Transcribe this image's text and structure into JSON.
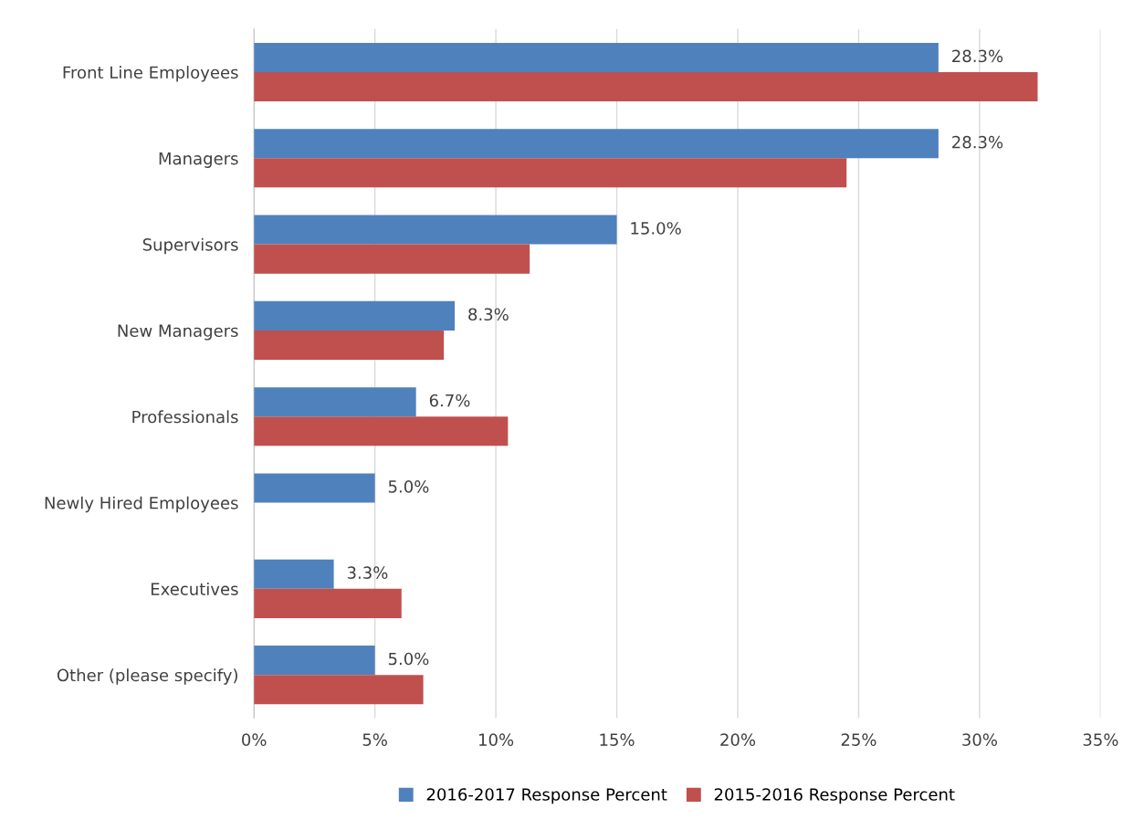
{
  "chart_data": {
    "type": "bar",
    "orientation": "horizontal",
    "categories": [
      "Front Line Employees",
      "Managers",
      "Supervisors",
      "New Managers",
      "Professionals",
      "Newly Hired Employees",
      "Executives",
      "Other (please specify)"
    ],
    "series": [
      {
        "name": "2016-2017 Response Percent",
        "color": "#4f81bd",
        "values": [
          28.3,
          28.3,
          15.0,
          8.3,
          6.7,
          5.0,
          3.3,
          5.0
        ],
        "value_labels": [
          "28.3%",
          "28.3%",
          "15.0%",
          "8.3%",
          "6.7%",
          "5.0%",
          "3.3%",
          "5.0%"
        ]
      },
      {
        "name": "2015-2016 Response Percent",
        "color": "#c0504d",
        "values": [
          32.4,
          24.5,
          11.4,
          7.85,
          10.5,
          null,
          6.1,
          7.0
        ]
      }
    ],
    "xlim": [
      0,
      35
    ],
    "xticks": [
      {
        "value": 0,
        "label": "0%"
      },
      {
        "value": 5,
        "label": "5%"
      },
      {
        "value": 10,
        "label": "10%"
      },
      {
        "value": 15,
        "label": "15%"
      },
      {
        "value": 20,
        "label": "20%"
      },
      {
        "value": 25,
        "label": "25%"
      },
      {
        "value": 30,
        "label": "30%"
      },
      {
        "value": 35,
        "label": "35%"
      }
    ],
    "grid": "x",
    "legend": "bottom"
  }
}
